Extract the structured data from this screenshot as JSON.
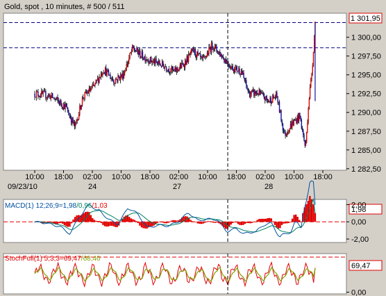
{
  "title": "Gold, spot , 10 minutes, # 500 / 511",
  "colors": {
    "background": "#d4d0c8",
    "plot_bg": "#ffffff",
    "up": "#e00000",
    "down": "#1010a0",
    "wick": "#000000",
    "dashed_line": "#000080",
    "macd_line": "#0050a0",
    "signal_line": "#008060",
    "histogram": "#e00000",
    "stoch_k": "#e00000",
    "stoch_d": "#80a000",
    "label_border": "#e00000"
  },
  "chart_data": [
    {
      "type": "candlestick",
      "title": "Gold, spot , 10 minutes, # 500 / 511",
      "y_ticks": [
        "1 300,00",
        "1 297,50",
        "1 295,00",
        "1 292,50",
        "1 290,00",
        "1 287,50",
        "1 285,00",
        "1 282,50"
      ],
      "y_tick_values": [
        1300.0,
        1297.5,
        1295.0,
        1292.5,
        1290.0,
        1287.5,
        1285.0,
        1282.5
      ],
      "ylim": [
        1282.3,
        1303.2
      ],
      "x_ticks": [
        "10:00",
        "18:00",
        "02:00",
        "10:00",
        "18:00",
        "02:00",
        "10:00",
        "18:00",
        "02:00",
        "10:00",
        "18:00"
      ],
      "x_dates": [
        "09/23/10",
        "24",
        "27",
        "28"
      ],
      "price_label": "1 301,95",
      "last_price": 1301.95,
      "reference_level": 1298.6,
      "vertical_marker_index": 11,
      "gridlines": false,
      "path_keypoints": [
        [
          0,
          1292.5
        ],
        [
          1.6,
          1292.2
        ],
        [
          3.2,
          1290.8
        ],
        [
          4.2,
          1288.0
        ],
        [
          5.0,
          1292.0
        ],
        [
          6.2,
          1293.5
        ],
        [
          7.2,
          1295.8
        ],
        [
          8.2,
          1294.2
        ],
        [
          9.2,
          1295.0
        ],
        [
          10.2,
          1298.5
        ],
        [
          11.2,
          1297.5
        ],
        [
          12.2,
          1296.8
        ],
        [
          13.5,
          1296.2
        ],
        [
          14.5,
          1295.4
        ],
        [
          15.5,
          1296.4
        ],
        [
          16.5,
          1298.2
        ],
        [
          17.5,
          1296.8
        ],
        [
          18.5,
          1299.0
        ],
        [
          19.5,
          1297.5
        ],
        [
          20.5,
          1296.0
        ],
        [
          21.5,
          1295.5
        ],
        [
          22.3,
          1292.5
        ],
        [
          23.3,
          1292.6
        ],
        [
          24.3,
          1291.5
        ],
        [
          25.2,
          1292.2
        ],
        [
          26.0,
          1287.0
        ],
        [
          26.8,
          1288.5
        ],
        [
          27.6,
          1289.5
        ],
        [
          28.2,
          1285.2
        ],
        [
          28.5,
          1291.0
        ],
        [
          28.9,
          1296.0
        ],
        [
          29.2,
          1301.95
        ]
      ]
    },
    {
      "type": "line",
      "name": "MACD",
      "label": "MACD(1) 12;26;9=1,98/0,96/1,03",
      "label_macd": "MACD(1) 12;26;9=1,98",
      "label_signal": "/0,96",
      "label_hist": "/1,03",
      "y_ticks": [
        "2,00",
        "0,00",
        "-2,00"
      ],
      "y_tick_values": [
        2.0,
        0.0,
        -2.0
      ],
      "ylim": [
        -2.4,
        2.6
      ],
      "value_label": "1,98",
      "macd": 1.98,
      "signal": 0.96,
      "histogram": 1.03,
      "zero_line_dashed": true
    },
    {
      "type": "line",
      "name": "StochFull",
      "label": "StochFull(1) 5;3;3=69,47/68,40",
      "label_k": "StochFull(1) 5;3;3=69,47",
      "label_d": "/68,40",
      "y_ticks": [
        "0,00"
      ],
      "y_tick_values": [
        0
      ],
      "ylim": [
        -5,
        110
      ],
      "value_label": "69,47",
      "k": 69.47,
      "d": 68.4,
      "upper_level": 100
    }
  ]
}
